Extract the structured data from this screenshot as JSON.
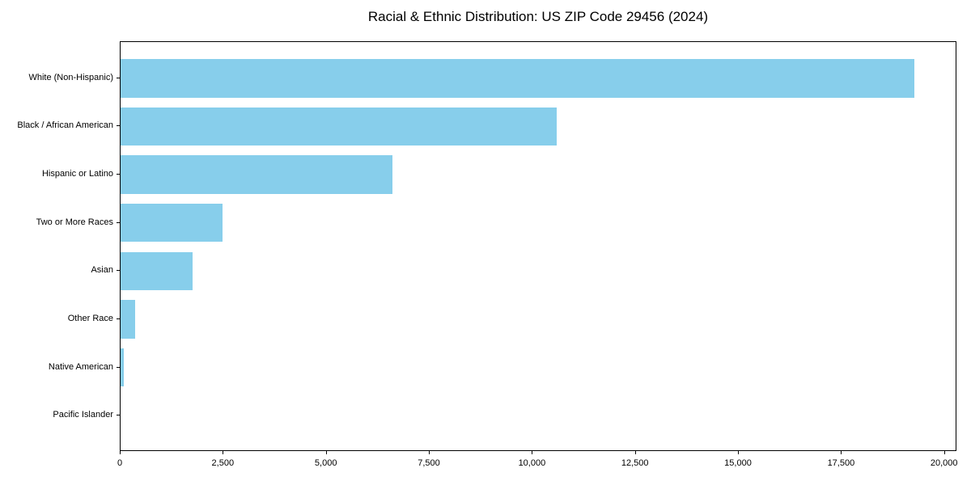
{
  "chart_data": {
    "type": "bar",
    "orientation": "horizontal",
    "title": "Racial & Ethnic Distribution: US ZIP Code 29456 (2024)",
    "categories": [
      "White (Non-Hispanic)",
      "Black / African American",
      "Hispanic or Latino",
      "Two or More Races",
      "Asian",
      "Other Race",
      "Native American",
      "Pacific Islander"
    ],
    "values": [
      19300,
      10600,
      6600,
      2470,
      1760,
      350,
      80,
      0
    ],
    "bar_color": "#87CEEB",
    "axis_color": "#000000",
    "text_color": "#000000",
    "xlabel": "",
    "ylabel": "",
    "xlim": [
      0,
      20300
    ],
    "x_ticks": [
      0,
      2500,
      5000,
      7500,
      10000,
      12500,
      15000,
      17500,
      20000
    ],
    "x_tick_labels": [
      "0",
      "2,500",
      "5,000",
      "7,500",
      "10,000",
      "12,500",
      "15,000",
      "17,500",
      "20,000"
    ],
    "grid": false,
    "legend": false
  }
}
